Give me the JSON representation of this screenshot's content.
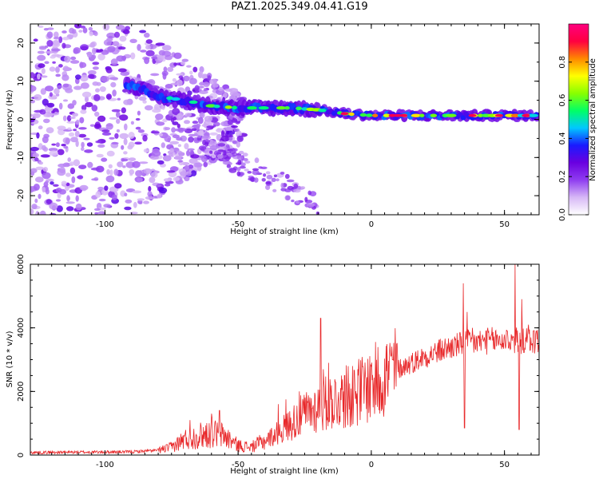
{
  "title": "PAZ1.2025.349.04.41.G19",
  "chart_data": [
    {
      "type": "heatmap",
      "xlabel": "Height of straight line (km)",
      "ylabel": "Frequency (Hz)",
      "xlim": [
        -128,
        63
      ],
      "ylim": [
        -25,
        25
      ],
      "xticks": [
        -100,
        -50,
        0,
        50
      ],
      "xtick_labels": [
        "-100",
        "-50",
        "0",
        "50"
      ],
      "yticks": [
        -20,
        -10,
        0,
        10,
        20
      ],
      "ytick_labels": [
        "-20",
        "-10",
        "0",
        "10",
        "20"
      ],
      "colorbar": {
        "label": "Normalized spectral amplitude",
        "range": [
          0,
          1
        ],
        "ticks": [
          0.0,
          0.2,
          0.4,
          0.6,
          0.8
        ],
        "tick_labels": [
          "0.0",
          "0.2",
          "0.4",
          "0.6",
          "0.8"
        ],
        "colors": [
          "#ffffff",
          "#d7b8f6",
          "#8f3df0",
          "#6a00e0",
          "#1a1aff",
          "#00c8ff",
          "#00ff66",
          "#88ff00",
          "#ffff00",
          "#ff8800",
          "#ff0040",
          "#ff007f"
        ]
      },
      "band": {
        "description": "frequency track",
        "points": [
          [
            -90,
            9
          ],
          [
            -80,
            6
          ],
          [
            -70,
            5
          ],
          [
            -60,
            3.5
          ],
          [
            -50,
            3
          ],
          [
            -40,
            3
          ],
          [
            -30,
            3
          ],
          [
            -20,
            2.5
          ],
          [
            -10,
            1.5
          ],
          [
            0,
            1
          ],
          [
            10,
            1
          ],
          [
            20,
            1
          ],
          [
            30,
            1
          ],
          [
            40,
            1
          ],
          [
            50,
            1
          ],
          [
            63,
            1
          ]
        ]
      }
    },
    {
      "type": "line",
      "xlabel": "Height of straight line (km)",
      "ylabel": "SNR (10 * v/v)",
      "xlim": [
        -128,
        63
      ],
      "ylim": [
        0,
        6000
      ],
      "xticks": [
        -100,
        -50,
        0,
        50
      ],
      "xtick_labels": [
        "-100",
        "-50",
        "0",
        "50"
      ],
      "yticks": [
        0,
        2000,
        4000,
        6000
      ],
      "ytick_labels": [
        "0",
        "2000",
        "4000",
        "6000"
      ],
      "color": "#e8282a",
      "envelope": [
        [
          -128,
          80
        ],
        [
          -110,
          90
        ],
        [
          -90,
          100
        ],
        [
          -80,
          150
        ],
        [
          -75,
          250
        ],
        [
          -70,
          500
        ],
        [
          -65,
          600
        ],
        [
          -60,
          700
        ],
        [
          -55,
          600
        ],
        [
          -50,
          300
        ],
        [
          -45,
          250
        ],
        [
          -40,
          450
        ],
        [
          -35,
          700
        ],
        [
          -30,
          1000
        ],
        [
          -25,
          1300
        ],
        [
          -20,
          1500
        ],
        [
          -15,
          1700
        ],
        [
          -10,
          1800
        ],
        [
          -5,
          2000
        ],
        [
          0,
          2200
        ],
        [
          5,
          2500
        ],
        [
          10,
          2700
        ],
        [
          15,
          2900
        ],
        [
          20,
          3100
        ],
        [
          25,
          3250
        ],
        [
          30,
          3400
        ],
        [
          35,
          3500
        ],
        [
          40,
          3550
        ],
        [
          45,
          3600
        ],
        [
          50,
          3600
        ],
        [
          55,
          3600
        ],
        [
          63,
          3600
        ]
      ],
      "spikes": [
        [
          -68,
          1100
        ],
        [
          -60,
          1300
        ],
        [
          -57,
          1400
        ],
        [
          -35,
          1600
        ],
        [
          -32,
          1750
        ],
        [
          -27,
          2000
        ],
        [
          -19,
          4300
        ],
        [
          -18,
          2700
        ],
        [
          -16,
          2900
        ],
        [
          -10,
          2500
        ],
        [
          -7,
          2800
        ],
        [
          -5,
          2700
        ],
        [
          0,
          2800
        ],
        [
          8,
          3000
        ],
        [
          34.5,
          5400
        ],
        [
          35,
          850
        ],
        [
          36,
          4500
        ],
        [
          38,
          4000
        ],
        [
          43,
          3900
        ],
        [
          51,
          3900
        ],
        [
          54,
          6000
        ],
        [
          55.5,
          800
        ],
        [
          56.5,
          4900
        ],
        [
          59,
          4100
        ],
        [
          62,
          3900
        ]
      ]
    }
  ]
}
